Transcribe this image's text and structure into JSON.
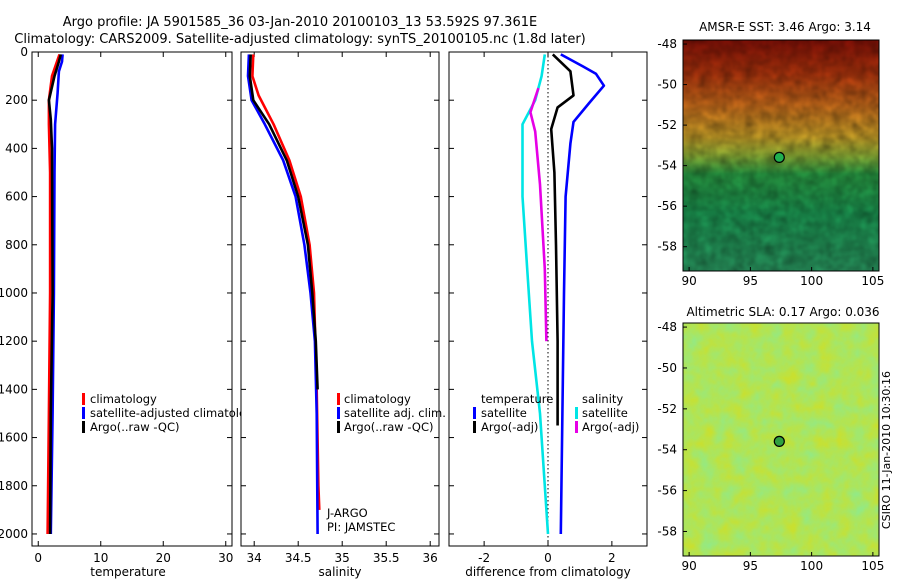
{
  "title_line1": "Argo profile: JA 5901585_36 03-Jan-2010 20100103_13 53.592S 97.361E",
  "title_line2": "Climatology: CARS2009. Satellite-adjusted climatology: synTS_20100105.nc (1.8d later)",
  "colors": {
    "climatology": "#ff0000",
    "satellite": "#0000ff",
    "argo": "#000000",
    "sat_sal": "#00e5e5",
    "argo_sal_diff": "#e600e6"
  },
  "chart_data": [
    {
      "id": "temperature",
      "type": "line",
      "xlabel": "temperature",
      "xlim": [
        -1,
        31
      ],
      "ylim": [
        2050,
        0
      ],
      "xticks": [
        0,
        10,
        20,
        30
      ],
      "yticks": [
        0,
        200,
        400,
        600,
        800,
        1000,
        1200,
        1400,
        1600,
        1800,
        2000
      ],
      "legend": [
        "climatology",
        "satellite-adjusted climatolog",
        "Argo(..raw -QC)"
      ],
      "series": [
        {
          "name": "climatology",
          "color": "#ff0000",
          "points": [
            [
              3.4,
              10
            ],
            [
              3.0,
              40
            ],
            [
              2.2,
              100
            ],
            [
              1.7,
              200
            ],
            [
              1.7,
              300
            ],
            [
              1.9,
              500
            ],
            [
              1.9,
              1000
            ],
            [
              1.7,
              1500
            ],
            [
              1.5,
              2000
            ]
          ]
        },
        {
          "name": "satellite-adjusted",
          "color": "#0000ff",
          "points": [
            [
              3.9,
              10
            ],
            [
              3.8,
              40
            ],
            [
              3.3,
              80
            ],
            [
              3.1,
              170
            ],
            [
              2.7,
              300
            ],
            [
              2.6,
              500
            ],
            [
              2.5,
              1000
            ],
            [
              2.3,
              1500
            ],
            [
              2.0,
              2000
            ]
          ]
        },
        {
          "name": "Argo",
          "color": "#000000",
          "points": [
            [
              3.6,
              10
            ],
            [
              3.3,
              40
            ],
            [
              2.6,
              100
            ],
            [
              1.7,
              200
            ],
            [
              2.0,
              280
            ],
            [
              2.2,
              400
            ],
            [
              2.3,
              1000
            ],
            [
              2.0,
              1500
            ],
            [
              1.9,
              2000
            ]
          ]
        }
      ]
    },
    {
      "id": "salinity",
      "type": "line",
      "xlabel": "salinity",
      "xlim": [
        33.85,
        36.1
      ],
      "ylim": [
        2050,
        0
      ],
      "xticks": [
        34,
        34.5,
        35,
        35.5,
        36
      ],
      "legend": [
        "climatology",
        "satellite adj. clim.",
        "Argo(..raw -QC)"
      ],
      "annotations": [
        "J-ARGO",
        "PI: JAMSTEC"
      ],
      "series": [
        {
          "name": "climatology",
          "color": "#ff0000",
          "points": [
            [
              33.99,
              10
            ],
            [
              33.98,
              100
            ],
            [
              34.05,
              180
            ],
            [
              34.22,
              300
            ],
            [
              34.4,
              450
            ],
            [
              34.53,
              600
            ],
            [
              34.63,
              800
            ],
            [
              34.68,
              1000
            ],
            [
              34.71,
              1400
            ],
            [
              34.73,
              1800
            ],
            [
              34.74,
              1900
            ]
          ]
        },
        {
          "name": "satellite-adjusted",
          "color": "#0000ff",
          "points": [
            [
              33.94,
              10
            ],
            [
              33.93,
              100
            ],
            [
              33.97,
              200
            ],
            [
              34.12,
              300
            ],
            [
              34.33,
              450
            ],
            [
              34.47,
              600
            ],
            [
              34.57,
              800
            ],
            [
              34.64,
              1000
            ],
            [
              34.69,
              1200
            ],
            [
              34.71,
              1500
            ],
            [
              34.72,
              2000
            ]
          ]
        },
        {
          "name": "Argo",
          "color": "#000000",
          "points": [
            [
              33.96,
              10
            ],
            [
              33.95,
              100
            ],
            [
              33.99,
              200
            ],
            [
              34.17,
              300
            ],
            [
              34.37,
              450
            ],
            [
              34.5,
              600
            ],
            [
              34.61,
              800
            ],
            [
              34.66,
              1000
            ],
            [
              34.7,
              1200
            ],
            [
              34.72,
              1400
            ]
          ]
        }
      ]
    },
    {
      "id": "difference",
      "type": "line",
      "xlabel": "difference from climatology",
      "xlim": [
        -3.1,
        3.1
      ],
      "ylim": [
        2050,
        0
      ],
      "xticks": [
        -2,
        0,
        2
      ],
      "legend_temperature": {
        "title": "temperature",
        "items": [
          "satellite",
          "Argo(-adj)"
        ]
      },
      "legend_salinity": {
        "title": "salinity",
        "items": [
          "satellite",
          "Argo(-adj)"
        ]
      },
      "series": [
        {
          "name": "temperature satellite",
          "color": "#0000ff",
          "points": [
            [
              0.4,
              10
            ],
            [
              1.1,
              60
            ],
            [
              1.5,
              90
            ],
            [
              1.75,
              140
            ],
            [
              1.3,
              210
            ],
            [
              0.8,
              290
            ],
            [
              0.7,
              380
            ],
            [
              0.55,
              600
            ],
            [
              0.5,
              1000
            ],
            [
              0.45,
              1500
            ],
            [
              0.4,
              2000
            ]
          ]
        },
        {
          "name": "temperature Argo(-adj)",
          "color": "#000000",
          "points": [
            [
              0.15,
              10
            ],
            [
              0.7,
              80
            ],
            [
              0.8,
              180
            ],
            [
              0.3,
              230
            ],
            [
              0.1,
              320
            ],
            [
              0.2,
              500
            ],
            [
              0.25,
              800
            ],
            [
              0.3,
              1200
            ],
            [
              0.3,
              1550
            ]
          ]
        },
        {
          "name": "salinity satellite",
          "color": "#00e5e5",
          "points": [
            [
              -0.1,
              10
            ],
            [
              -0.2,
              100
            ],
            [
              -0.4,
              200
            ],
            [
              -0.8,
              300
            ],
            [
              -0.8,
              600
            ],
            [
              -0.65,
              900
            ],
            [
              -0.5,
              1200
            ],
            [
              -0.25,
              1500
            ],
            [
              -0.1,
              1800
            ],
            [
              0.0,
              2000
            ]
          ]
        },
        {
          "name": "salinity Argo(-adj)",
          "color": "#e600e6",
          "points": [
            [
              -0.3,
              150
            ],
            [
              -0.55,
              250
            ],
            [
              -0.4,
              330
            ],
            [
              -0.25,
              550
            ],
            [
              -0.1,
              900
            ],
            [
              -0.05,
              1200
            ]
          ]
        }
      ]
    },
    {
      "id": "sst_map",
      "type": "heatmap",
      "title": "AMSR-E SST: 3.46  Argo: 3.14",
      "xlim": [
        89.5,
        105.5
      ],
      "ylim": [
        -59.2,
        -47.8
      ],
      "xticks": [
        90,
        95,
        100,
        105
      ],
      "yticks": [
        -48,
        -50,
        -52,
        -54,
        -56,
        -58
      ],
      "marker": {
        "lon": 97.361,
        "lat": -53.592
      }
    },
    {
      "id": "sla_map",
      "type": "heatmap",
      "title": "Altimetric SLA: 0.17  Argo: 0.036",
      "xlim": [
        89.5,
        105.5
      ],
      "ylim": [
        -59.2,
        -47.8
      ],
      "xticks": [
        90,
        95,
        100,
        105
      ],
      "yticks": [
        -48,
        -50,
        -52,
        -54,
        -56,
        -58
      ],
      "marker": {
        "lon": 97.361,
        "lat": -53.592
      }
    }
  ],
  "credit": "CSIRO 11-Jan-2010 10:30:16"
}
